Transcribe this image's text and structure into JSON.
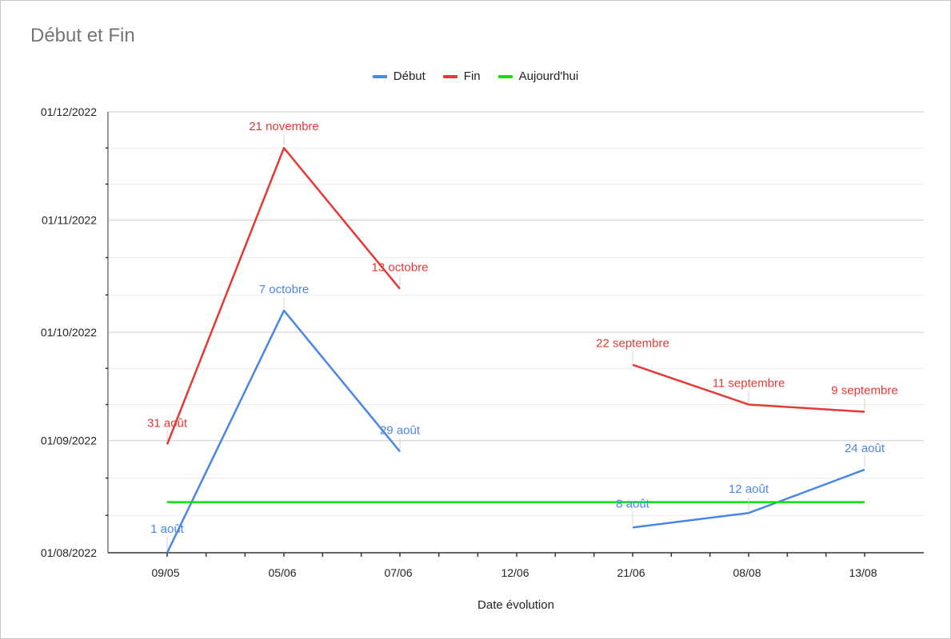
{
  "chart_data": {
    "type": "line",
    "title": "Début et Fin",
    "xlabel": "Date évolution",
    "ylabel": "",
    "categories": [
      "09/05",
      "05/06",
      "07/06",
      "12/06",
      "21/06",
      "08/08",
      "13/08"
    ],
    "y_ticks": [
      "01/08/2022",
      "01/09/2022",
      "01/10/2022",
      "01/11/2022",
      "01/12/2022"
    ],
    "ylim": [
      "2022-08-01",
      "2022-12-01"
    ],
    "grid": true,
    "legend_position": "top",
    "series": [
      {
        "name": "Début",
        "color": "#4a86e8",
        "values": [
          "2022-08-01",
          "2022-10-07",
          "2022-08-29",
          null,
          "2022-08-08",
          "2022-08-12",
          "2022-08-24"
        ],
        "labels": [
          "1 août",
          "7 octobre",
          "29 août",
          null,
          "8 août",
          "12 août",
          "24 août"
        ]
      },
      {
        "name": "Fin",
        "color": "#e53935",
        "values": [
          "2022-08-31",
          "2022-11-21",
          "2022-10-13",
          null,
          "2022-09-22",
          "2022-09-11",
          "2022-09-09"
        ],
        "labels": [
          "31 août",
          "21 novembre",
          "13 octobre",
          null,
          "22 septembre",
          "11 septembre",
          "9 septembre"
        ]
      },
      {
        "name": "Aujourd'hui",
        "color": "#00e600",
        "values": [
          "2022-08-15",
          "2022-08-15",
          "2022-08-15",
          "2022-08-15",
          "2022-08-15",
          "2022-08-15",
          "2022-08-15"
        ],
        "labels": [
          null,
          null,
          null,
          null,
          null,
          null,
          null
        ]
      }
    ]
  }
}
